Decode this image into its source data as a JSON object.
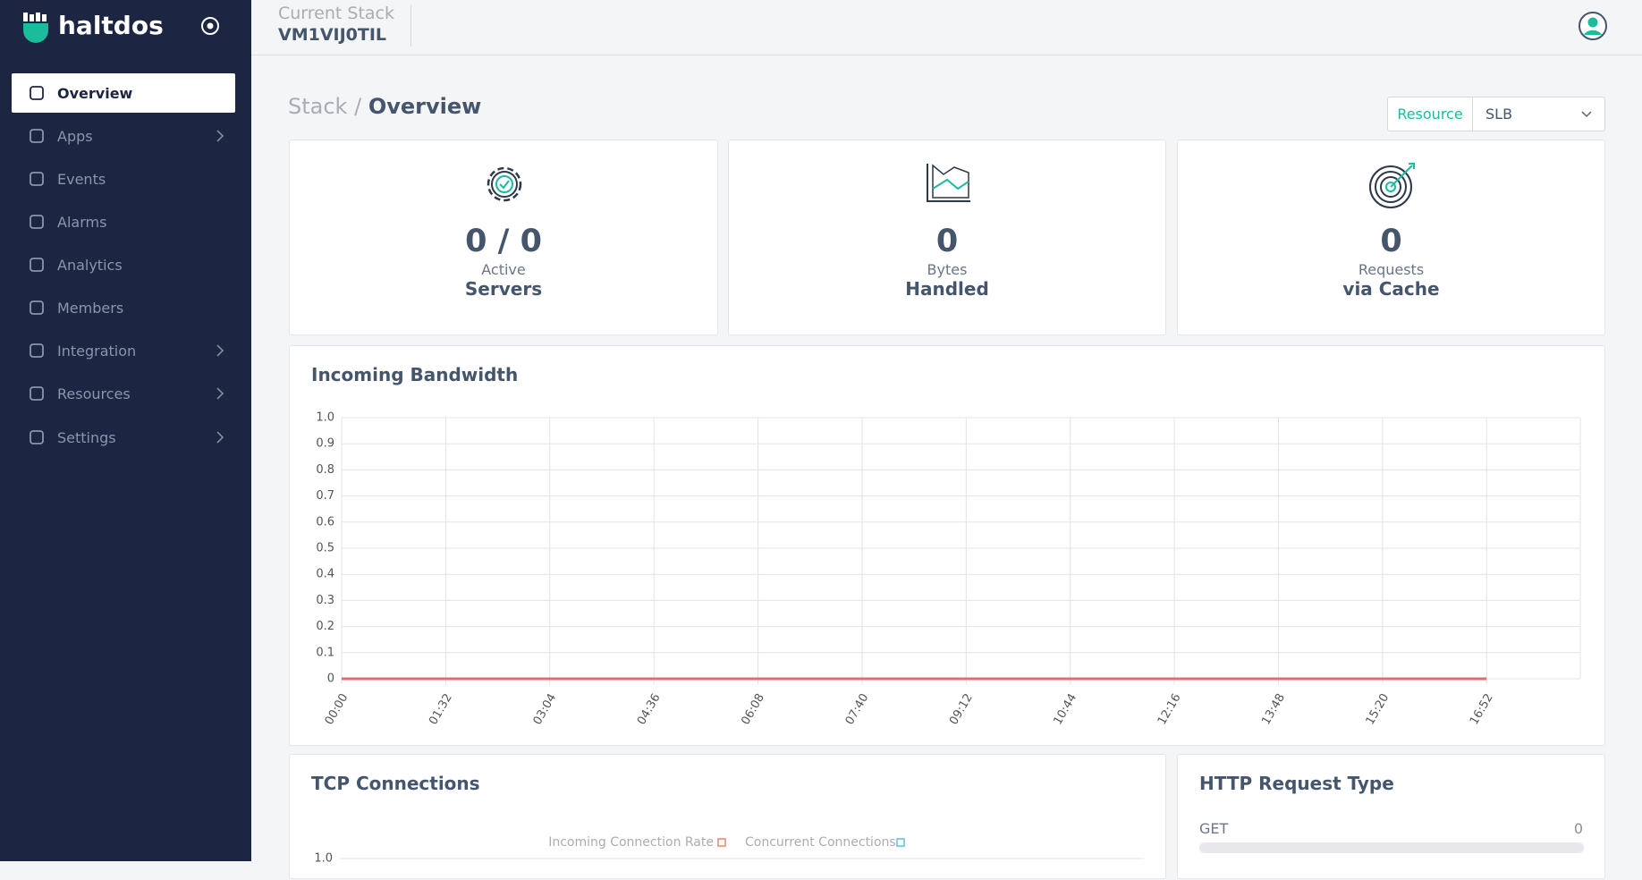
{
  "sidebar": {
    "brand": "haltdos",
    "nav": [
      "Overview",
      "Apps",
      "Events",
      "Alarms",
      "Analytics",
      "Members",
      "Integration",
      "Resources",
      "Settings"
    ]
  },
  "header": {
    "label": "Current Stack",
    "stack": "VM1VIJ0TIL"
  },
  "breadcrumb": {
    "parent": "Stack /",
    "current": "Overview"
  },
  "resource": {
    "label": "Resource",
    "value": "SLB"
  },
  "cards": [
    {
      "value": "0 / 0",
      "label": "Active",
      "sub": "Servers"
    },
    {
      "value": "0",
      "label": "Bytes",
      "sub": "Handled"
    },
    {
      "value": "0",
      "label": "Requests",
      "sub": "via Cache"
    }
  ],
  "chart_data": [
    {
      "type": "line",
      "title": "Incoming Bandwidth",
      "categories": [
        "00:00",
        "01:32",
        "03:04",
        "04:36",
        "06:08",
        "07:40",
        "09:12",
        "10:44",
        "12:16",
        "13:48",
        "15:20",
        "16:52"
      ],
      "series": [
        {
          "color": "#e06c75",
          "values": [
            0,
            0,
            0,
            0,
            0,
            0,
            0,
            0,
            0,
            0,
            0,
            0
          ]
        }
      ],
      "ylim": [
        0,
        1
      ],
      "yticks": [
        0,
        0.1,
        0.2,
        0.3,
        0.4,
        0.5,
        0.6,
        0.7,
        0.8,
        0.9,
        {
          "value": 1,
          "label": "1.0"
        }
      ],
      "grid": true
    },
    {
      "type": "line",
      "title": "TCP Connections",
      "series": [
        {
          "name": "Incoming Connection Rate",
          "color": "#e8836b"
        },
        {
          "name": "Concurrent Connections",
          "color": "#5bc0de"
        }
      ],
      "yticks": [
        {
          "value": 1,
          "label": "1.0"
        }
      ]
    }
  ],
  "http": {
    "title": "HTTP Request Type",
    "rows": [
      {
        "label": "GET",
        "value": "0"
      }
    ]
  }
}
